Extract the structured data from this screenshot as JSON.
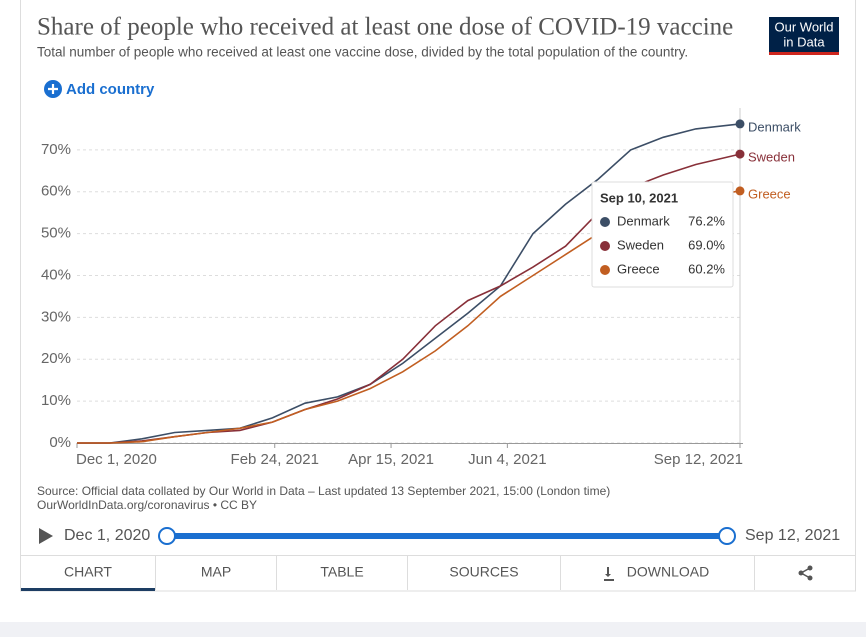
{
  "page": {
    "logo": [
      "Our World",
      "in Data"
    ],
    "add_country": "Add country",
    "source": "Source: Official data collated by Our World in Data – Last updated 13 September 2021, 15:00 (London time)",
    "license": "OurWorldInData.org/coronavirus • CC BY",
    "timeline_start": "Dec 1, 2020",
    "timeline_end": "Sep 12, 2021",
    "tabs": [
      "CHART",
      "MAP",
      "TABLE",
      "SOURCES",
      "DOWNLOAD"
    ]
  },
  "chart_data": {
    "type": "line",
    "title": "Share of people who received at least one dose of COVID-19 vaccine",
    "subtitle": "Total number of people who received at least one vaccine dose, divided by the total population of the country.",
    "x": [
      "2020-12-01",
      "2020-12-15",
      "2020-12-29",
      "2021-01-12",
      "2021-01-26",
      "2021-02-09",
      "2021-02-23",
      "2021-03-09",
      "2021-03-23",
      "2021-04-06",
      "2021-04-20",
      "2021-05-04",
      "2021-05-18",
      "2021-06-01",
      "2021-06-15",
      "2021-06-29",
      "2021-07-13",
      "2021-07-27",
      "2021-08-10",
      "2021-08-24",
      "2021-09-12"
    ],
    "series": [
      {
        "name": "Denmark",
        "color": "#3c4e66",
        "values": [
          0,
          0,
          1,
          2.5,
          3,
          3.5,
          6,
          9.5,
          11,
          14,
          19,
          25,
          31,
          37.5,
          50,
          57,
          63,
          70,
          73,
          75,
          76.2
        ]
      },
      {
        "name": "Sweden",
        "color": "#883039",
        "values": [
          0,
          0,
          0.5,
          1.5,
          2.5,
          3,
          5,
          8,
          10.5,
          14,
          20,
          28,
          34,
          37.5,
          42,
          47,
          55,
          61,
          64,
          66.5,
          69.0
        ]
      },
      {
        "name": "Greece",
        "color": "#c15e21",
        "values": [
          0,
          0,
          0.3,
          1.5,
          2.5,
          3.5,
          5,
          8,
          10,
          13,
          17,
          22,
          28,
          35,
          40,
          45,
          50,
          54,
          56.5,
          58.5,
          60.2
        ]
      }
    ],
    "xlim": [
      "2020-12-01",
      "2021-09-12"
    ],
    "xticks": [
      {
        "value": "2020-12-01",
        "label": "Dec 1, 2020"
      },
      {
        "value": "2021-02-24",
        "label": "Feb 24, 2021"
      },
      {
        "value": "2021-04-15",
        "label": "Apr 15, 2021"
      },
      {
        "value": "2021-06-04",
        "label": "Jun 4, 2021"
      },
      {
        "value": "2021-09-12",
        "label": "Sep 12, 2021"
      }
    ],
    "ylim": [
      0,
      80
    ],
    "yticks": [
      {
        "value": 0,
        "label": "0%"
      },
      {
        "value": 10,
        "label": "10%"
      },
      {
        "value": 20,
        "label": "20%"
      },
      {
        "value": 30,
        "label": "30%"
      },
      {
        "value": 40,
        "label": "40%"
      },
      {
        "value": 50,
        "label": "50%"
      },
      {
        "value": 60,
        "label": "60%"
      },
      {
        "value": 70,
        "label": "70%"
      }
    ],
    "grid": true,
    "tooltip": {
      "date": "Sep 10, 2021",
      "values": [
        76.2,
        69.0,
        60.2
      ],
      "value_labels": [
        "76.2%",
        "69.0%",
        "60.2%"
      ]
    }
  }
}
